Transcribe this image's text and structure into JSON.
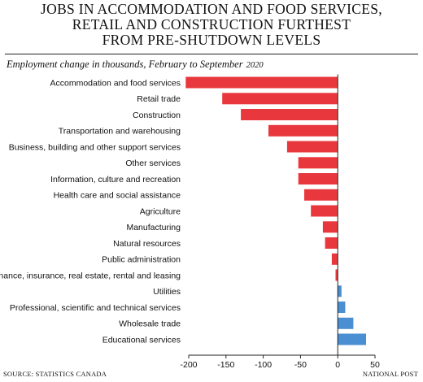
{
  "title_lines": [
    "JOBS IN ACCOMMODATION AND FOOD SERVICES,",
    "RETAIL AND CONSTRUCTION FURTHEST",
    "FROM PRE-SHUTDOWN LEVELS"
  ],
  "subtitle": "Employment change in thousands, February to September",
  "subtitle_year": "2020",
  "source": "SOURCE: STATISTICS CANADA",
  "credit": "NATIONAL POST",
  "colors": {
    "negative": "#e8383d",
    "positive": "#4a8fd1",
    "axis": "#222222"
  },
  "chart_data": {
    "type": "bar",
    "orientation": "horizontal",
    "title": "JOBS IN ACCOMMODATION AND FOOD SERVICES, RETAIL AND CONSTRUCTION FURTHEST FROM PRE-SHUTDOWN LEVELS",
    "subtitle": "Employment change in thousands, February to September 2020",
    "xlabel": "",
    "ylabel": "",
    "xlim": [
      -200,
      50
    ],
    "xticks": [
      -200,
      -150,
      -100,
      -50,
      0,
      50
    ],
    "grid": false,
    "categories": [
      "Accommodation and food services",
      "Retail trade",
      "Construction",
      "Transportation and warehousing",
      "Business, building and other support services",
      "Other services",
      "Information, culture and recreation",
      "Health care and social assistance",
      "Agriculture",
      "Manufacturing",
      "Natural resources",
      "Public administration",
      "Finance, insurance, real estate, rental and leasing",
      "Utilities",
      "Professional, scientific and technical services",
      "Wholesale trade",
      "Educational services"
    ],
    "values": [
      -204,
      -155,
      -130,
      -93,
      -68,
      -53,
      -53,
      -45,
      -36,
      -20,
      -17,
      -8,
      -3,
      5,
      10,
      21,
      38
    ]
  }
}
